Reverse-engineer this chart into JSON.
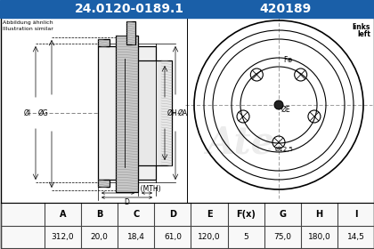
{
  "title1": "24.0120-0189.1",
  "title2": "420189",
  "header_bg": "#1a5fa8",
  "header_text_color": "#ffffff",
  "bg_color": "#ffffff",
  "table_headers_display": [
    "A",
    "B",
    "C",
    "D",
    "E",
    "F(x)",
    "G",
    "H",
    "I"
  ],
  "table_values": [
    "312,0",
    "20,0",
    "18,4",
    "61,0",
    "120,0",
    "5",
    "75,0",
    "180,0",
    "14,5"
  ],
  "label_abbildung": "Abbildung ähnlich",
  "label_illustration": "Illustration similar",
  "label_links": "links",
  "label_left": "left",
  "line_color": "#000000",
  "gray_fill": "#c8c8c8",
  "light_gray": "#e8e8e8",
  "table_line_color": "#444444",
  "watermark_color": "#cccccc"
}
